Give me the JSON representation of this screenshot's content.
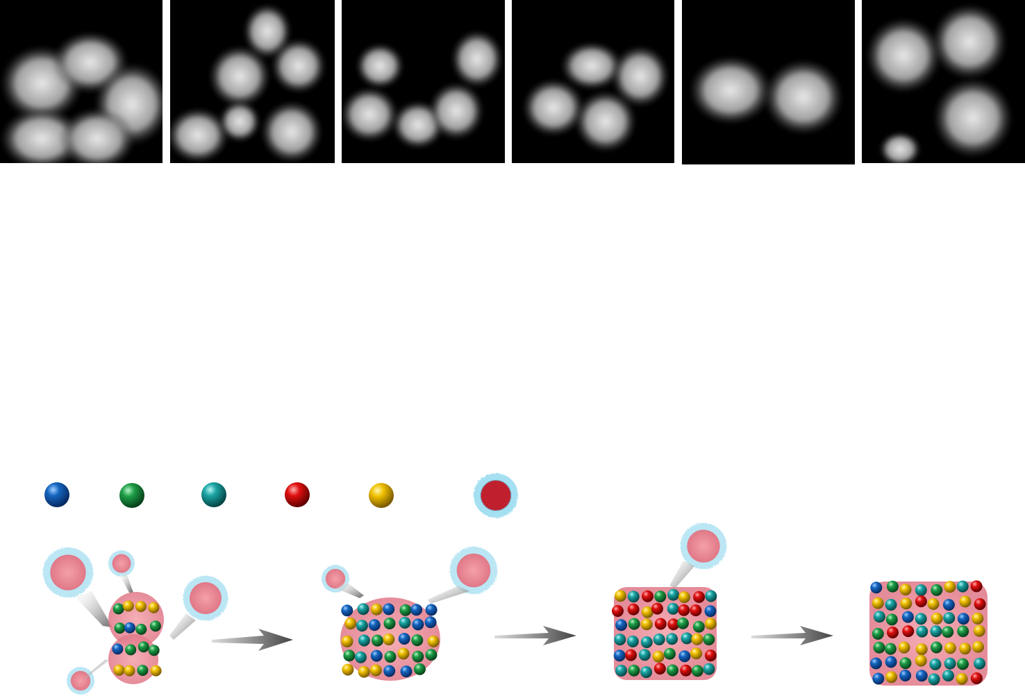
{
  "micrographs": [
    {
      "id": "panel-1"
    },
    {
      "id": "panel-2"
    },
    {
      "id": "panel-3"
    },
    {
      "id": "panel-4"
    },
    {
      "id": "panel-5"
    },
    {
      "id": "panel-6"
    }
  ],
  "legend": {
    "spheres": [
      {
        "color": "#1565c0"
      },
      {
        "color": "#1e9e47"
      },
      {
        "color": "#1aa3a3"
      },
      {
        "color": "#e01010"
      },
      {
        "color": "#f0c000"
      }
    ],
    "micelle": {
      "core_color": "#d84050",
      "corona_color": "#5bc8e8"
    }
  },
  "stages": 4,
  "arrow_color": "#555555"
}
